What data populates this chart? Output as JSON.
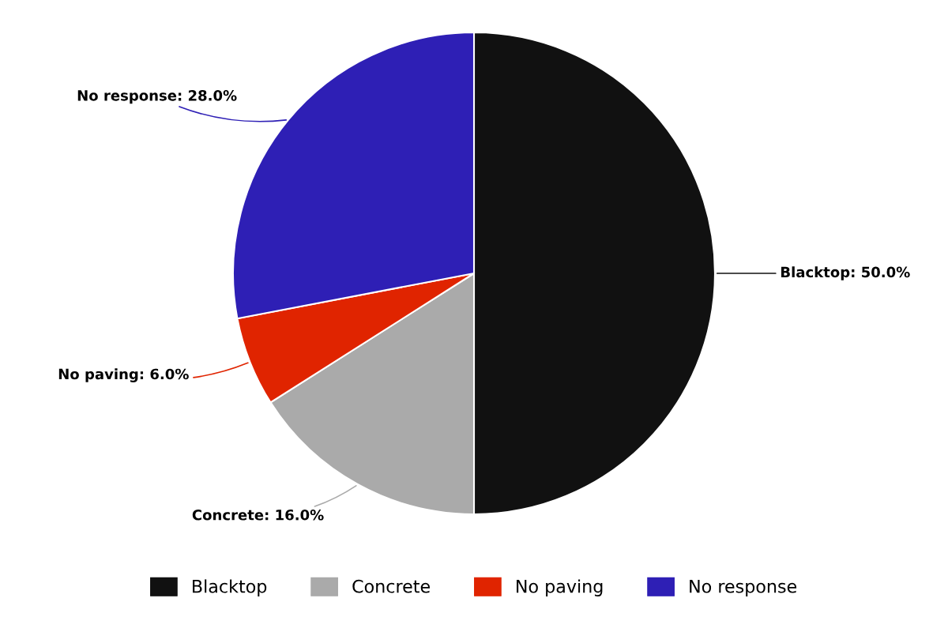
{
  "chart_data": {
    "type": "pie",
    "categories": [
      "Blacktop",
      "Concrete",
      "No paving",
      "No response"
    ],
    "values": [
      50,
      16,
      6,
      28
    ],
    "colors": [
      "#111111",
      "#aaaaaa",
      "#e02400",
      "#2e1fb5"
    ],
    "value_labels": [
      "Blacktop: 50.0%",
      "Concrete: 16.0%",
      "No paving: 6.0%",
      "No response: 28.0%"
    ],
    "legend": "bottom"
  }
}
